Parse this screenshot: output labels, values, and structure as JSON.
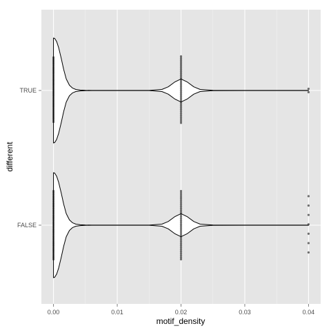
{
  "chart_data": {
    "type": "violin",
    "orientation": "horizontal",
    "title": "",
    "xlabel": "motif_density",
    "ylabel": "different",
    "xlim": [
      -0.0019,
      0.0419
    ],
    "x_ticks": [
      0.0,
      0.01,
      0.02,
      0.03,
      0.04
    ],
    "x_tick_labels": [
      "0.00",
      "0.01",
      "0.02",
      "0.03",
      "0.04"
    ],
    "categories": [
      "TRUE",
      "FALSE"
    ],
    "grid": true,
    "background": "#E5E5E5",
    "grid_color": "#FFFFFF",
    "violin_fill": "#FFFFFF",
    "violin_stroke": "#000000",
    "point_color": "#000000",
    "groups": [
      {
        "label": "TRUE",
        "density_profile": [
          [
            0.0,
            1.0
          ],
          [
            0.0002,
            0.99
          ],
          [
            0.0005,
            0.93
          ],
          [
            0.0008,
            0.82
          ],
          [
            0.0012,
            0.62
          ],
          [
            0.0016,
            0.4
          ],
          [
            0.002,
            0.22
          ],
          [
            0.0025,
            0.1
          ],
          [
            0.003,
            0.045
          ],
          [
            0.0035,
            0.02
          ],
          [
            0.0042,
            0.008
          ],
          [
            0.005,
            0.003
          ],
          [
            0.006,
            0.0015
          ],
          [
            0.01,
            0.001
          ],
          [
            0.015,
            0.002
          ],
          [
            0.017,
            0.02
          ],
          [
            0.018,
            0.07
          ],
          [
            0.019,
            0.16
          ],
          [
            0.02,
            0.22
          ],
          [
            0.021,
            0.16
          ],
          [
            0.022,
            0.07
          ],
          [
            0.023,
            0.02
          ],
          [
            0.025,
            0.003
          ],
          [
            0.03,
            0.001
          ],
          [
            0.04,
            0.001
          ]
        ],
        "points": [
          {
            "x": 0.0,
            "count": 40,
            "spread": [
              -0.97,
              0.92
            ]
          },
          {
            "x": 0.02,
            "count": 36,
            "spread": [
              -1.0,
              0.95
            ]
          },
          {
            "x": 0.04,
            "count": 2,
            "spread": [
              -0.05,
              0.05
            ]
          }
        ]
      },
      {
        "label": "FALSE",
        "density_profile": [
          [
            0.0,
            1.0
          ],
          [
            0.0002,
            0.99
          ],
          [
            0.0005,
            0.93
          ],
          [
            0.0008,
            0.82
          ],
          [
            0.0012,
            0.62
          ],
          [
            0.0016,
            0.4
          ],
          [
            0.002,
            0.22
          ],
          [
            0.0025,
            0.1
          ],
          [
            0.003,
            0.045
          ],
          [
            0.0035,
            0.02
          ],
          [
            0.0042,
            0.008
          ],
          [
            0.005,
            0.003
          ],
          [
            0.006,
            0.0015
          ],
          [
            0.01,
            0.001
          ],
          [
            0.015,
            0.002
          ],
          [
            0.017,
            0.02
          ],
          [
            0.018,
            0.07
          ],
          [
            0.019,
            0.16
          ],
          [
            0.02,
            0.22
          ],
          [
            0.021,
            0.16
          ],
          [
            0.022,
            0.07
          ],
          [
            0.023,
            0.02
          ],
          [
            0.025,
            0.003
          ],
          [
            0.03,
            0.001
          ],
          [
            0.04,
            0.001
          ]
        ],
        "points": [
          {
            "x": 0.0,
            "count": 40,
            "spread": [
              -1.0,
              1.0
            ]
          },
          {
            "x": 0.02,
            "count": 36,
            "spread": [
              -1.0,
              1.0
            ]
          },
          {
            "x": 0.04,
            "count": 7,
            "spread": [
              -0.85,
              0.8
            ]
          }
        ]
      }
    ]
  }
}
